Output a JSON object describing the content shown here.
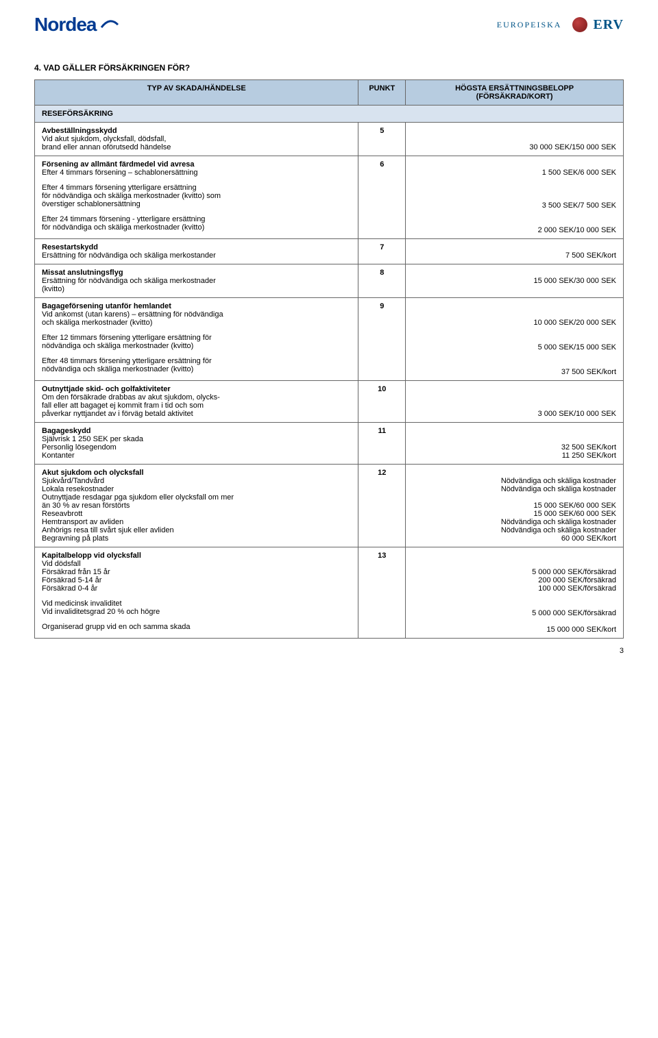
{
  "logos": {
    "nordea": "Nordea",
    "erv_small": "EUROPEISKA",
    "erv": "ERV"
  },
  "section_title": "4. VAD GÄLLER FÖRSÄKRINGEN FÖR?",
  "headers": {
    "col1": "TYP AV SKADA/HÄNDELSE",
    "col2": "PUNKT",
    "col3a": "HÖGSTA ERSÄTTNINGSBELOPP",
    "col3b": "(FÖRSÄKRAD/KORT)"
  },
  "section_row": "RESEFÖRSÄKRING",
  "rows": [
    {
      "title": "Avbeställningsskydd",
      "lines": [
        "Vid akut sjukdom, olycksfall, dödsfall,",
        "brand eller annan oförutsedd händelse"
      ],
      "punkt": "5",
      "amounts": [
        "",
        "",
        "30 000 SEK/150 000 SEK"
      ]
    },
    {
      "title": "Försening av allmänt färdmedel vid avresa",
      "lines": [
        "Efter 4 timmars försening – schablonersättning"
      ],
      "sub": [
        {
          "lines": [
            "Efter 4 timmars försening ytterligare ersättning",
            "för nödvändiga och skäliga merkostnader (kvitto) som",
            "överstiger schablonersättning"
          ]
        },
        {
          "lines": [
            "Efter 24 timmars försening - ytterligare ersättning",
            "för nödvändiga och skäliga merkostnader (kvitto)"
          ]
        }
      ],
      "punkt": "6",
      "amounts": [
        "",
        "1 500 SEK/6 000 SEK",
        "",
        "",
        "",
        "3 500 SEK/7 500 SEK",
        "",
        "",
        "2 000 SEK/10 000 SEK"
      ]
    },
    {
      "title": "Resestartskydd",
      "lines": [
        "Ersättning för nödvändiga och skäliga merkostander"
      ],
      "punkt": "7",
      "amounts": [
        "",
        "7 500 SEK/kort"
      ]
    },
    {
      "title": "Missat anslutningsflyg",
      "lines": [
        "Ersättning för nödvändiga och skäliga merkostnader",
        "(kvitto)"
      ],
      "punkt": "8",
      "amounts": [
        "",
        "15 000 SEK/30 000 SEK"
      ]
    },
    {
      "title": "Bagageförsening utanför hemlandet",
      "lines": [
        "Vid ankomst (utan karens) – ersättning för nödvändiga",
        "och skäliga merkostnader (kvitto)"
      ],
      "sub": [
        {
          "lines": [
            "Efter 12 timmars försening ytterligare ersättning för",
            "nödvändiga och skäliga merkostnader (kvitto)"
          ]
        },
        {
          "lines": [
            "Efter 48 timmars försening ytterligare ersättning för",
            "nödvändiga och skäliga merkostnader (kvitto)"
          ]
        }
      ],
      "punkt": "9",
      "amounts": [
        "",
        "",
        "10 000 SEK/20 000 SEK",
        "",
        "",
        "5 000 SEK/15 000 SEK",
        "",
        "",
        "37 500 SEK/kort"
      ]
    },
    {
      "title": "Outnyttjade skid- och golfaktiviteter",
      "lines": [
        "Om den försäkrade drabbas av akut sjukdom, olycks-",
        "fall eller att bagaget ej kommit fram i tid och som",
        "påverkar nyttjandet av i förväg betald aktivitet"
      ],
      "punkt": "10",
      "amounts": [
        "",
        "",
        "",
        "3 000 SEK/10 000 SEK"
      ]
    },
    {
      "title": "Bagageskydd",
      "lines": [
        "Självrisk 1 250 SEK per skada",
        "Personlig lösegendom",
        "Kontanter"
      ],
      "punkt": "11",
      "amounts": [
        "",
        "",
        "32 500 SEK/kort",
        "11 250 SEK/kort"
      ]
    },
    {
      "title": "Akut sjukdom och olycksfall",
      "lines": [
        "Sjukvård/Tandvård",
        "Lokala resekostnader",
        "Outnyttjade resdagar pga sjukdom eller olycksfall om mer",
        "än 30 % av resan förstörts",
        "Reseavbrott",
        "Hemtransport av avliden",
        "Anhörigs resa till svårt sjuk eller avliden",
        "Begravning på plats"
      ],
      "punkt": "12",
      "amounts": [
        "",
        "Nödvändiga och skäliga kostnader",
        "Nödvändiga och skäliga kostnader",
        "",
        "15 000 SEK/60 000 SEK",
        "15 000 SEK/60 000 SEK",
        "Nödvändiga och skäliga kostnader",
        "Nödvändiga och skäliga kostnader",
        "60 000 SEK/kort"
      ]
    },
    {
      "title": "Kapitalbelopp vid olycksfall",
      "lines": [
        "Vid dödsfall",
        "Försäkrad från 15 år",
        "Försäkrad 5-14 år",
        "Försäkrad 0-4 år"
      ],
      "sub": [
        {
          "lines": [
            "Vid medicinsk invaliditet",
            "Vid invaliditetsgrad 20 % och högre"
          ]
        },
        {
          "lines": [
            "Organiserad grupp vid en och samma skada"
          ]
        }
      ],
      "punkt": "13",
      "amounts": [
        "",
        "",
        "5 000 000 SEK/försäkrad",
        "200 000 SEK/försäkrad",
        "100 000 SEK/försäkrad",
        "",
        "",
        "5 000 000 SEK/försäkrad",
        "",
        "15 000 000 SEK/kort"
      ]
    }
  ],
  "page_number": "3"
}
